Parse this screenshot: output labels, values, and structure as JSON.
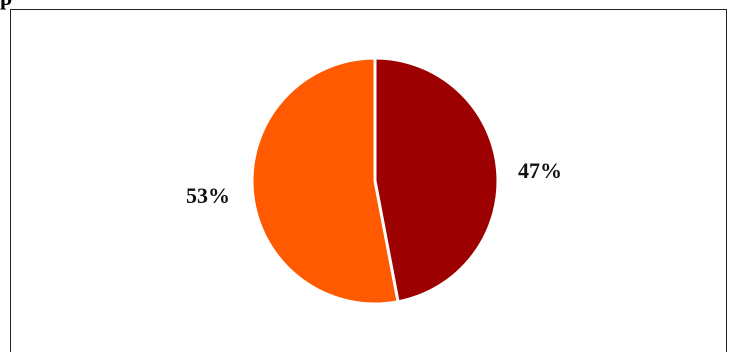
{
  "top_fragment": "p",
  "chart_data": {
    "type": "pie",
    "title": "",
    "slices": [
      {
        "label": "47%",
        "value": 47,
        "color": "#9c0000"
      },
      {
        "label": "53%",
        "value": 53,
        "color": "#ff5a00"
      }
    ],
    "start_angle_deg": 0,
    "direction": "clockwise",
    "slice_separator_color": "#ffffff",
    "legend": "none"
  }
}
